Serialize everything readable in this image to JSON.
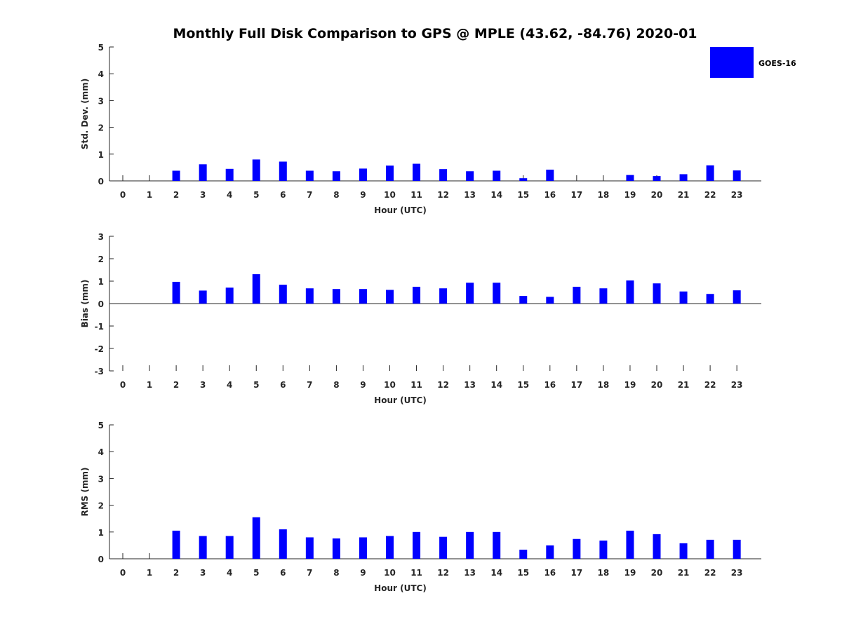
{
  "figure": {
    "title": "Monthly Full Disk Comparison to GPS @ MPLE (43.62, -84.76) 2020-01",
    "legend": {
      "label": "GOES-16",
      "color": "#0000ff",
      "placement": "top-right"
    }
  },
  "chart_data": [
    {
      "type": "bar",
      "title": "Monthly Full Disk Comparison to GPS @ MPLE (43.62, -84.76) 2020-01",
      "xlabel": "Hour (UTC)",
      "ylabel": "Std. Dev. (mm)",
      "categories": [
        "0",
        "1",
        "2",
        "3",
        "4",
        "5",
        "6",
        "7",
        "8",
        "9",
        "10",
        "11",
        "12",
        "13",
        "14",
        "15",
        "16",
        "17",
        "18",
        "19",
        "20",
        "21",
        "22",
        "23"
      ],
      "series": [
        {
          "name": "GOES-16",
          "values": [
            null,
            null,
            0.38,
            0.62,
            0.45,
            0.8,
            0.72,
            0.38,
            0.36,
            0.46,
            0.57,
            0.64,
            0.44,
            0.36,
            0.38,
            0.1,
            0.42,
            null,
            null,
            0.22,
            0.18,
            0.25,
            0.58,
            0.39
          ]
        }
      ],
      "yticks": [
        "0",
        "1",
        "2",
        "3",
        "4",
        "5"
      ],
      "ylim": [
        0,
        5
      ],
      "grid": false
    },
    {
      "type": "bar",
      "xlabel": "Hour (UTC)",
      "ylabel": "Bias (mm)",
      "categories": [
        "0",
        "1",
        "2",
        "3",
        "4",
        "5",
        "6",
        "7",
        "8",
        "9",
        "10",
        "11",
        "12",
        "13",
        "14",
        "15",
        "16",
        "17",
        "18",
        "19",
        "20",
        "21",
        "22",
        "23"
      ],
      "series": [
        {
          "name": "GOES-16",
          "values": [
            null,
            null,
            0.97,
            0.58,
            0.71,
            1.31,
            0.84,
            0.68,
            0.65,
            0.65,
            0.61,
            0.75,
            0.68,
            0.93,
            0.93,
            0.34,
            0.3,
            0.75,
            0.68,
            1.03,
            0.9,
            0.54,
            0.43,
            0.59
          ]
        }
      ],
      "yticks": [
        "-3",
        "-2",
        "-1",
        "0",
        "1",
        "2",
        "3"
      ],
      "ylim": [
        -3,
        3
      ],
      "grid": false
    },
    {
      "type": "bar",
      "xlabel": "Hour (UTC)",
      "ylabel": "RMS (mm)",
      "categories": [
        "0",
        "1",
        "2",
        "3",
        "4",
        "5",
        "6",
        "7",
        "8",
        "9",
        "10",
        "11",
        "12",
        "13",
        "14",
        "15",
        "16",
        "17",
        "18",
        "19",
        "20",
        "21",
        "22",
        "23"
      ],
      "series": [
        {
          "name": "GOES-16",
          "values": [
            null,
            null,
            1.05,
            0.85,
            0.85,
            1.55,
            1.1,
            0.8,
            0.76,
            0.8,
            0.85,
            1.0,
            0.82,
            1.0,
            1.0,
            0.34,
            0.5,
            0.74,
            0.68,
            1.05,
            0.92,
            0.58,
            0.71,
            0.71
          ]
        }
      ],
      "yticks": [
        "0",
        "1",
        "2",
        "3",
        "4",
        "5"
      ],
      "ylim": [
        0,
        5
      ],
      "grid": false
    }
  ]
}
